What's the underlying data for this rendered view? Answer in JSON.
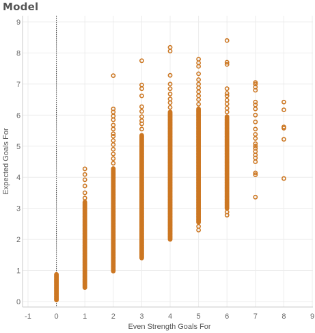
{
  "title": "Model",
  "chart_data": {
    "type": "scatter",
    "xlabel": "Even Strength Goals For",
    "ylabel": "Expected Goals For",
    "xlim": [
      -1,
      9
    ],
    "ylim": [
      0,
      9
    ],
    "xticks": [
      -1,
      0,
      1,
      2,
      3,
      4,
      5,
      6,
      7,
      8,
      9
    ],
    "yticks": [
      0,
      1,
      2,
      3,
      4,
      5,
      6,
      7,
      8,
      9
    ],
    "grid": true,
    "reference_line_x": 0,
    "marker": "hollow-circle",
    "color": "#cc7722",
    "series": [
      {
        "points": [
          {
            "x": 0,
            "range": [
              0.05,
              0.88
            ],
            "step": 0.025
          },
          {
            "x": 1,
            "range": [
              0.45,
              3.2
            ],
            "step": 0.025
          },
          {
            "x": 1,
            "y": 3.33
          },
          {
            "x": 1,
            "y": 3.5
          },
          {
            "x": 1,
            "y": 3.72
          },
          {
            "x": 1,
            "y": 3.92
          },
          {
            "x": 1,
            "y": 4.09
          },
          {
            "x": 1,
            "y": 4.27
          },
          {
            "x": 2,
            "range": [
              0.98,
              4.3
            ],
            "step": 0.025
          },
          {
            "x": 2,
            "y": 4.45
          },
          {
            "x": 2,
            "y": 4.6
          },
          {
            "x": 2,
            "y": 4.75
          },
          {
            "x": 2,
            "y": 4.9
          },
          {
            "x": 2,
            "y": 5.05
          },
          {
            "x": 2,
            "y": 5.18
          },
          {
            "x": 2,
            "y": 5.32
          },
          {
            "x": 2,
            "y": 5.4
          },
          {
            "x": 2,
            "y": 5.55
          },
          {
            "x": 2,
            "y": 5.68
          },
          {
            "x": 2,
            "y": 5.85
          },
          {
            "x": 2,
            "y": 5.97
          },
          {
            "x": 2,
            "y": 6.1
          },
          {
            "x": 2,
            "y": 6.2
          },
          {
            "x": 2,
            "y": 7.27
          },
          {
            "x": 3,
            "range": [
              1.4,
              5.35
            ],
            "step": 0.025
          },
          {
            "x": 3,
            "y": 5.55
          },
          {
            "x": 3,
            "y": 5.72
          },
          {
            "x": 3,
            "y": 5.82
          },
          {
            "x": 3,
            "y": 5.95
          },
          {
            "x": 3,
            "y": 6.12
          },
          {
            "x": 3,
            "y": 6.27
          },
          {
            "x": 3,
            "y": 6.62
          },
          {
            "x": 3,
            "y": 6.85
          },
          {
            "x": 3,
            "y": 6.97
          },
          {
            "x": 3,
            "y": 7.75
          },
          {
            "x": 4,
            "range": [
              2.0,
              6.1
            ],
            "step": 0.025
          },
          {
            "x": 4,
            "y": 6.25
          },
          {
            "x": 4,
            "y": 6.4
          },
          {
            "x": 4,
            "y": 6.52
          },
          {
            "x": 4,
            "y": 6.68
          },
          {
            "x": 4,
            "y": 6.85
          },
          {
            "x": 4,
            "y": 7.0
          },
          {
            "x": 4,
            "y": 7.28
          },
          {
            "x": 4,
            "y": 8.06
          },
          {
            "x": 4,
            "y": 8.18
          },
          {
            "x": 5,
            "range": [
              2.55,
              6.2
            ],
            "step": 0.025
          },
          {
            "x": 5,
            "y": 2.3
          },
          {
            "x": 5,
            "y": 2.42
          },
          {
            "x": 5,
            "y": 6.35
          },
          {
            "x": 5,
            "y": 6.5
          },
          {
            "x": 5,
            "y": 6.62
          },
          {
            "x": 5,
            "y": 6.75
          },
          {
            "x": 5,
            "y": 6.88
          },
          {
            "x": 5,
            "y": 7.0
          },
          {
            "x": 5,
            "y": 7.14
          },
          {
            "x": 5,
            "y": 7.33
          },
          {
            "x": 5,
            "y": 7.57
          },
          {
            "x": 5,
            "y": 7.68
          },
          {
            "x": 5,
            "y": 7.8
          },
          {
            "x": 6,
            "range": [
              3.0,
              5.95
            ],
            "step": 0.025
          },
          {
            "x": 6,
            "y": 2.78
          },
          {
            "x": 6,
            "y": 2.88
          },
          {
            "x": 6,
            "y": 6.1
          },
          {
            "x": 6,
            "y": 6.22
          },
          {
            "x": 6,
            "y": 6.36
          },
          {
            "x": 6,
            "y": 6.48
          },
          {
            "x": 6,
            "y": 6.62
          },
          {
            "x": 6,
            "y": 6.7
          },
          {
            "x": 6,
            "y": 6.85
          },
          {
            "x": 6,
            "y": 7.63
          },
          {
            "x": 6,
            "y": 7.7
          },
          {
            "x": 6,
            "y": 8.4
          },
          {
            "x": 7,
            "y": 3.36
          },
          {
            "x": 7,
            "y": 4.08
          },
          {
            "x": 7,
            "y": 4.14
          },
          {
            "x": 7,
            "y": 4.5
          },
          {
            "x": 7,
            "y": 4.62
          },
          {
            "x": 7,
            "y": 4.72
          },
          {
            "x": 7,
            "y": 4.83
          },
          {
            "x": 7,
            "y": 4.93
          },
          {
            "x": 7,
            "y": 5.0
          },
          {
            "x": 7,
            "y": 5.08
          },
          {
            "x": 7,
            "y": 5.25
          },
          {
            "x": 7,
            "y": 5.38
          },
          {
            "x": 7,
            "y": 5.55
          },
          {
            "x": 7,
            "y": 5.78
          },
          {
            "x": 7,
            "y": 6.0
          },
          {
            "x": 7,
            "y": 6.2
          },
          {
            "x": 7,
            "y": 6.33
          },
          {
            "x": 7,
            "y": 6.42
          },
          {
            "x": 7,
            "y": 6.8
          },
          {
            "x": 7,
            "y": 6.9
          },
          {
            "x": 7,
            "y": 7.0
          },
          {
            "x": 7,
            "y": 7.05
          },
          {
            "x": 8,
            "y": 3.96
          },
          {
            "x": 8,
            "y": 5.22
          },
          {
            "x": 8,
            "y": 5.58
          },
          {
            "x": 8,
            "y": 5.62
          },
          {
            "x": 8,
            "y": 6.17
          },
          {
            "x": 8,
            "y": 6.42
          }
        ]
      }
    ]
  }
}
